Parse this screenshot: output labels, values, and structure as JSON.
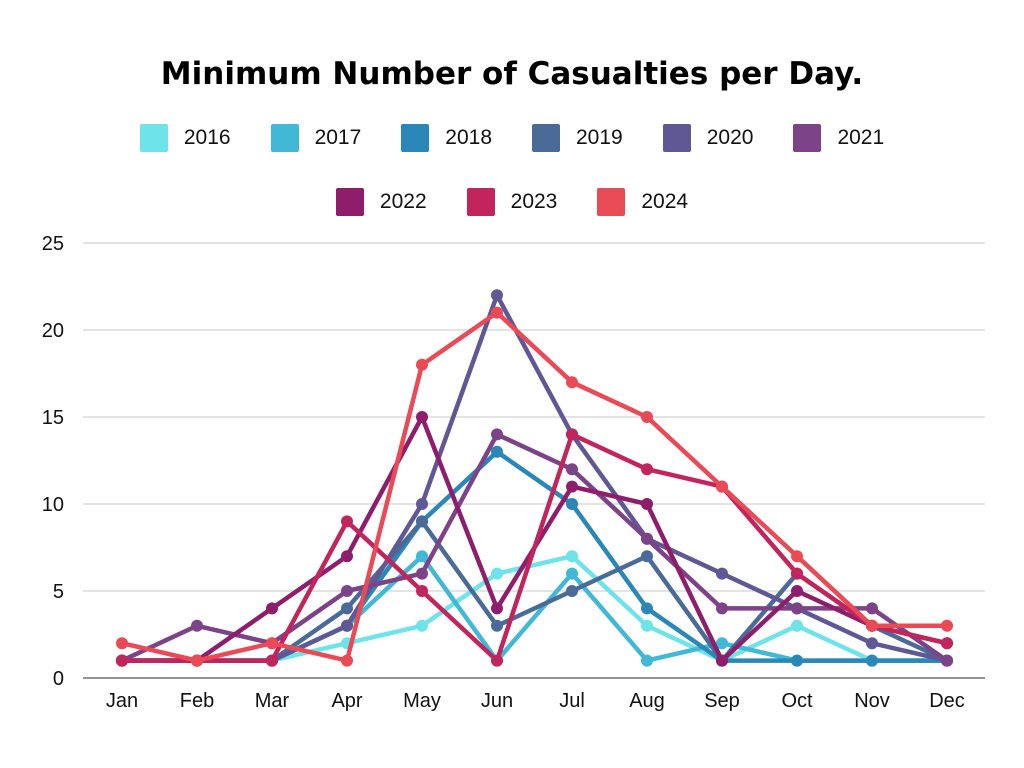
{
  "chart_data": {
    "type": "line",
    "title": "Minimum Number of Casualties per Day.",
    "xlabel": "",
    "ylabel": "",
    "categories": [
      "Jan",
      "Feb",
      "Mar",
      "Apr",
      "May",
      "Jun",
      "Jul",
      "Aug",
      "Sep",
      "Oct",
      "Nov",
      "Dec"
    ],
    "ylim": [
      0,
      25
    ],
    "yticks": [
      "0",
      "5",
      "10",
      "15",
      "20",
      "25"
    ],
    "grid": "horizontal",
    "legend_position": "top",
    "series": [
      {
        "name": "2016",
        "color": "#6ee3ea",
        "values": [
          1,
          1,
          1,
          2,
          3,
          6,
          7,
          3,
          1,
          3,
          1,
          1
        ]
      },
      {
        "name": "2017",
        "color": "#40b8d6",
        "values": [
          1,
          1,
          1,
          3,
          7,
          1,
          6,
          1,
          2,
          1,
          1,
          1
        ]
      },
      {
        "name": "2018",
        "color": "#2a88b8",
        "values": [
          1,
          1,
          1,
          3,
          9,
          13,
          10,
          4,
          1,
          1,
          1,
          1
        ]
      },
      {
        "name": "2019",
        "color": "#4a6a98",
        "values": [
          1,
          1,
          1,
          4,
          9,
          3,
          5,
          7,
          1,
          6,
          3,
          1
        ]
      },
      {
        "name": "2020",
        "color": "#5f5894",
        "values": [
          1,
          1,
          1,
          3,
          10,
          22,
          14,
          8,
          6,
          4,
          2,
          1
        ]
      },
      {
        "name": "2021",
        "color": "#7c4388",
        "values": [
          1,
          3,
          2,
          5,
          6,
          14,
          12,
          8,
          4,
          4,
          4,
          1
        ]
      },
      {
        "name": "2022",
        "color": "#8e1e6c",
        "values": [
          1,
          1,
          4,
          7,
          15,
          4,
          11,
          10,
          1,
          5,
          3,
          2
        ]
      },
      {
        "name": "2023",
        "color": "#c2245c",
        "values": [
          1,
          1,
          1,
          9,
          5,
          1,
          14,
          12,
          11,
          6,
          3,
          2
        ]
      },
      {
        "name": "2024",
        "color": "#ea4a55",
        "values": [
          2,
          1,
          2,
          1,
          18,
          21,
          17,
          15,
          11,
          7,
          3,
          3
        ]
      }
    ]
  }
}
